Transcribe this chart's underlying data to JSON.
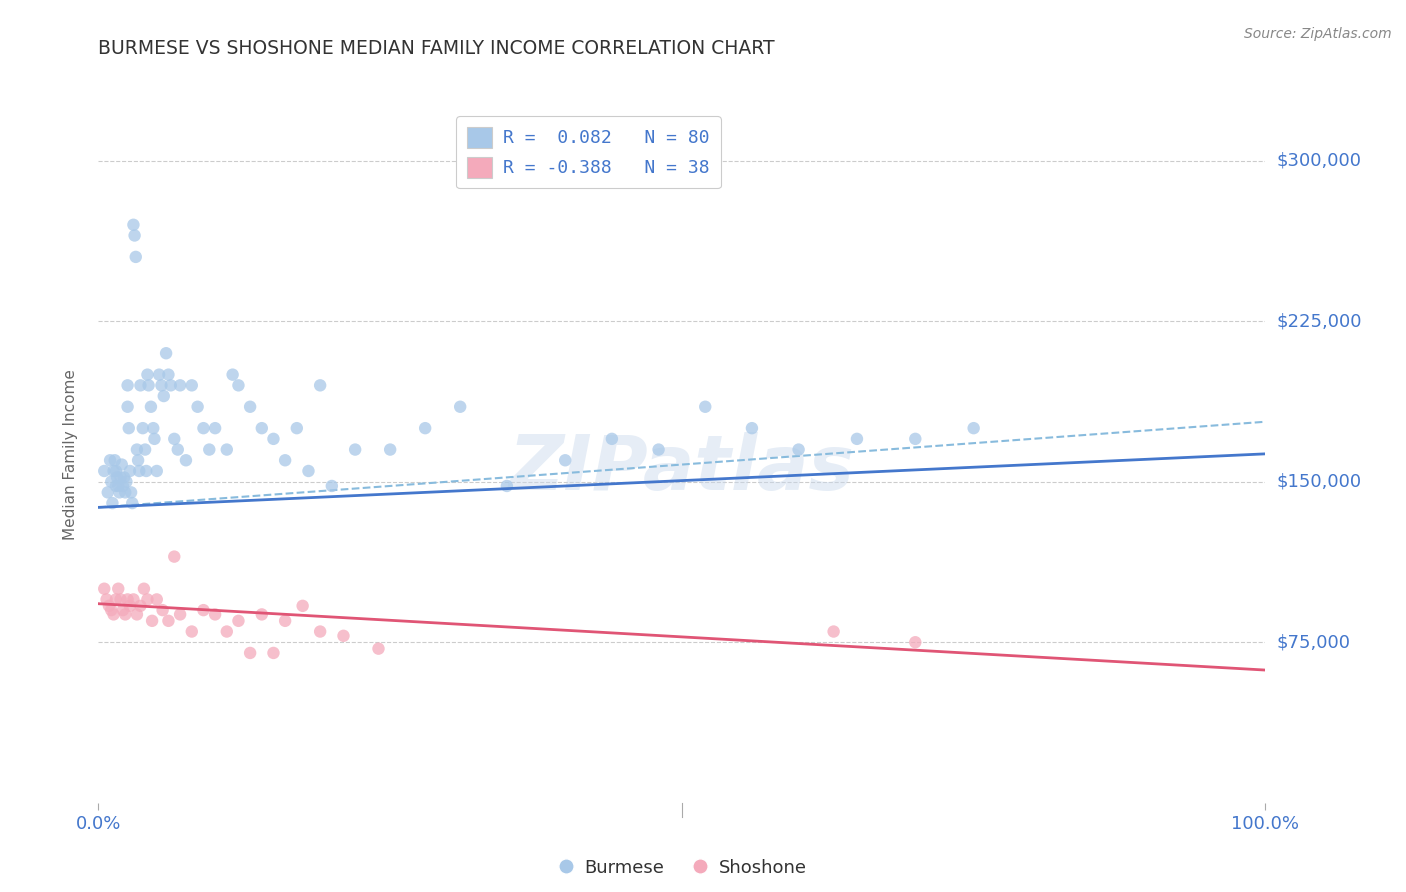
{
  "title": "BURMESE VS SHOSHONE MEDIAN FAMILY INCOME CORRELATION CHART",
  "source_text": "Source: ZipAtlas.com",
  "ylabel": "Median Family Income",
  "xlim": [
    0.0,
    1.0
  ],
  "ylim": [
    0,
    325000
  ],
  "yticks": [
    75000,
    150000,
    225000,
    300000
  ],
  "ytick_labels": [
    "$75,000",
    "$150,000",
    "$225,000",
    "$300,000"
  ],
  "xtick_positions": [
    0.0,
    1.0
  ],
  "xtick_labels": [
    "0.0%",
    "100.0%"
  ],
  "burmese_color": "#a8c8e8",
  "shoshone_color": "#f4aabb",
  "burmese_line_color": "#4477cc",
  "shoshone_line_color": "#e05575",
  "dashed_line_color": "#88bbdd",
  "legend_R_label1": "R =  0.082   N = 80",
  "legend_R_label2": "R = -0.388   N = 38",
  "watermark": "ZIPatlas",
  "background_color": "#ffffff",
  "grid_color": "#cccccc",
  "title_color": "#333333",
  "axis_label_color": "#666666",
  "tick_label_color": "#4477cc",
  "source_color": "#888888",
  "burmese_scatter_x": [
    0.005,
    0.008,
    0.01,
    0.011,
    0.012,
    0.013,
    0.014,
    0.015,
    0.015,
    0.016,
    0.017,
    0.018,
    0.019,
    0.02,
    0.021,
    0.022,
    0.023,
    0.024,
    0.025,
    0.025,
    0.026,
    0.027,
    0.028,
    0.029,
    0.03,
    0.031,
    0.032,
    0.033,
    0.034,
    0.035,
    0.036,
    0.038,
    0.04,
    0.041,
    0.042,
    0.043,
    0.045,
    0.047,
    0.048,
    0.05,
    0.052,
    0.054,
    0.056,
    0.058,
    0.06,
    0.062,
    0.065,
    0.068,
    0.07,
    0.075,
    0.08,
    0.085,
    0.09,
    0.095,
    0.1,
    0.11,
    0.115,
    0.12,
    0.13,
    0.14,
    0.15,
    0.16,
    0.17,
    0.18,
    0.19,
    0.2,
    0.22,
    0.25,
    0.28,
    0.31,
    0.35,
    0.4,
    0.44,
    0.48,
    0.52,
    0.56,
    0.6,
    0.65,
    0.7,
    0.75
  ],
  "burmese_scatter_y": [
    155000,
    145000,
    160000,
    150000,
    140000,
    155000,
    160000,
    148000,
    155000,
    152000,
    148000,
    145000,
    152000,
    158000,
    148000,
    152000,
    145000,
    150000,
    195000,
    185000,
    175000,
    155000,
    145000,
    140000,
    270000,
    265000,
    255000,
    165000,
    160000,
    155000,
    195000,
    175000,
    165000,
    155000,
    200000,
    195000,
    185000,
    175000,
    170000,
    155000,
    200000,
    195000,
    190000,
    210000,
    200000,
    195000,
    170000,
    165000,
    195000,
    160000,
    195000,
    185000,
    175000,
    165000,
    175000,
    165000,
    200000,
    195000,
    185000,
    175000,
    170000,
    160000,
    175000,
    155000,
    195000,
    148000,
    165000,
    165000,
    175000,
    185000,
    148000,
    160000,
    170000,
    165000,
    185000,
    175000,
    165000,
    170000,
    170000,
    175000
  ],
  "shoshone_scatter_x": [
    0.005,
    0.007,
    0.009,
    0.011,
    0.013,
    0.015,
    0.017,
    0.019,
    0.021,
    0.023,
    0.025,
    0.027,
    0.03,
    0.033,
    0.036,
    0.039,
    0.042,
    0.046,
    0.05,
    0.055,
    0.06,
    0.065,
    0.07,
    0.08,
    0.09,
    0.1,
    0.11,
    0.12,
    0.13,
    0.14,
    0.15,
    0.16,
    0.175,
    0.19,
    0.21,
    0.24,
    0.63,
    0.7
  ],
  "shoshone_scatter_y": [
    100000,
    95000,
    92000,
    90000,
    88000,
    95000,
    100000,
    95000,
    90000,
    88000,
    95000,
    92000,
    95000,
    88000,
    92000,
    100000,
    95000,
    85000,
    95000,
    90000,
    85000,
    115000,
    88000,
    80000,
    90000,
    88000,
    80000,
    85000,
    70000,
    88000,
    70000,
    85000,
    92000,
    80000,
    78000,
    72000,
    80000,
    75000
  ],
  "burmese_trend_x": [
    0.0,
    1.0
  ],
  "burmese_trend_y": [
    138000,
    163000
  ],
  "shoshone_trend_x": [
    0.0,
    1.0
  ],
  "shoshone_trend_y": [
    93000,
    62000
  ],
  "dashed_trend_x": [
    0.0,
    1.0
  ],
  "dashed_trend_y": [
    138000,
    178000
  ]
}
